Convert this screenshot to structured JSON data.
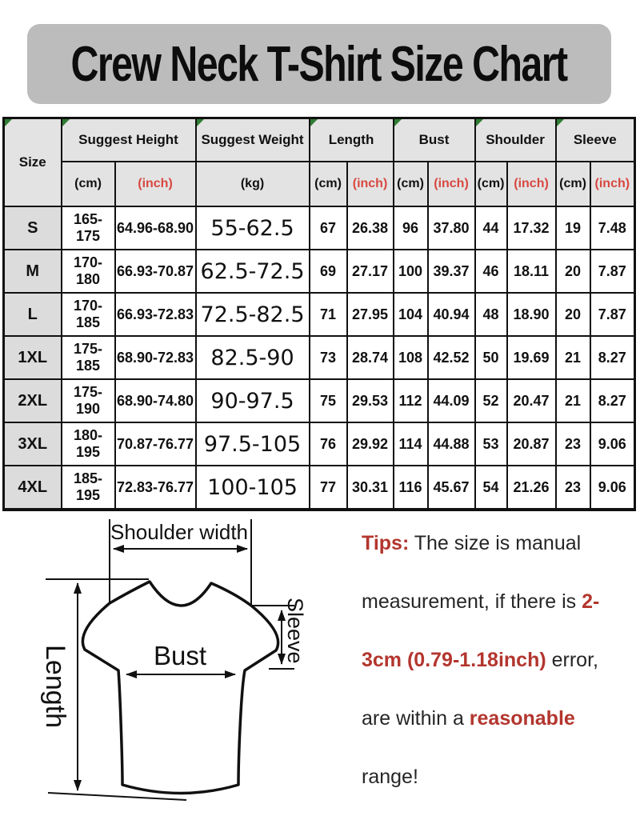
{
  "title": "Crew Neck T-Shirt Size Chart",
  "colors": {
    "banner_bg": "#bcbcbc",
    "header_bg": "#e3e3e3",
    "size_col_bg": "#dcdcdc",
    "inch_red": "#d84840",
    "tips_red": "#b3362e",
    "triangle_green": "#2f7d32"
  },
  "chart_data": {
    "type": "table",
    "title": "Crew Neck T-Shirt Size Chart",
    "column_groups": [
      {
        "label": "Size",
        "units": []
      },
      {
        "label": "Suggest Height",
        "units": [
          "(cm)",
          "(inch)"
        ]
      },
      {
        "label": "Suggest Weight",
        "units": [
          "(kg)"
        ]
      },
      {
        "label": "Length",
        "units": [
          "(cm)",
          "(inch)"
        ]
      },
      {
        "label": "Bust",
        "units": [
          "(cm)",
          "(inch)"
        ]
      },
      {
        "label": "Shoulder",
        "units": [
          "(cm)",
          "(inch)"
        ]
      },
      {
        "label": "Sleeve",
        "units": [
          "(cm)",
          "(inch)"
        ]
      }
    ],
    "column_keys": [
      "size",
      "height-cm",
      "height-inch",
      "weight-kg",
      "length-cm",
      "length-inch",
      "bust-cm",
      "bust-inch",
      "shoulder-cm",
      "shoulder-inch",
      "sleeve-cm",
      "sleeve-inch"
    ],
    "rows": [
      [
        "S",
        "165-175",
        "64.96-68.90",
        "55-62.5",
        "67",
        "26.38",
        "96",
        "37.80",
        "44",
        "17.32",
        "19",
        "7.48"
      ],
      [
        "M",
        "170-180",
        "66.93-70.87",
        "62.5-72.5",
        "69",
        "27.17",
        "100",
        "39.37",
        "46",
        "18.11",
        "20",
        "7.87"
      ],
      [
        "L",
        "170-185",
        "66.93-72.83",
        "72.5-82.5",
        "71",
        "27.95",
        "104",
        "40.94",
        "48",
        "18.90",
        "20",
        "7.87"
      ],
      [
        "1XL",
        "175-185",
        "68.90-72.83",
        "82.5-90",
        "73",
        "28.74",
        "108",
        "42.52",
        "50",
        "19.69",
        "21",
        "8.27"
      ],
      [
        "2XL",
        "175-190",
        "68.90-74.80",
        "90-97.5",
        "75",
        "29.53",
        "112",
        "44.09",
        "52",
        "20.47",
        "21",
        "8.27"
      ],
      [
        "3XL",
        "180-195",
        "70.87-76.77",
        "97.5-105",
        "76",
        "29.92",
        "114",
        "44.88",
        "53",
        "20.87",
        "23",
        "9.06"
      ],
      [
        "4XL",
        "185-195",
        "72.83-76.77",
        "100-105",
        "77",
        "30.31",
        "116",
        "45.67",
        "54",
        "21.26",
        "23",
        "9.06"
      ]
    ]
  },
  "diagram": {
    "shoulder_width": "Shoulder width",
    "length": "Length",
    "bust": "Bust",
    "sleeve": "Sleeve"
  },
  "tips": {
    "lines": [
      [
        {
          "t": "Tips:",
          "red": true
        },
        {
          "t": " The size is manual",
          "red": false
        }
      ],
      [
        {
          "t": "measurement, if there is ",
          "red": false
        },
        {
          "t": "2-",
          "red": true
        }
      ],
      [
        {
          "t": "3cm (0.79-1.18inch)",
          "red": true
        },
        {
          "t": " error,",
          "red": false
        }
      ],
      [
        {
          "t": "are within a ",
          "red": false
        },
        {
          "t": "reasonable",
          "red": true
        }
      ],
      [
        {
          "t": "range!",
          "red": false
        }
      ]
    ]
  }
}
